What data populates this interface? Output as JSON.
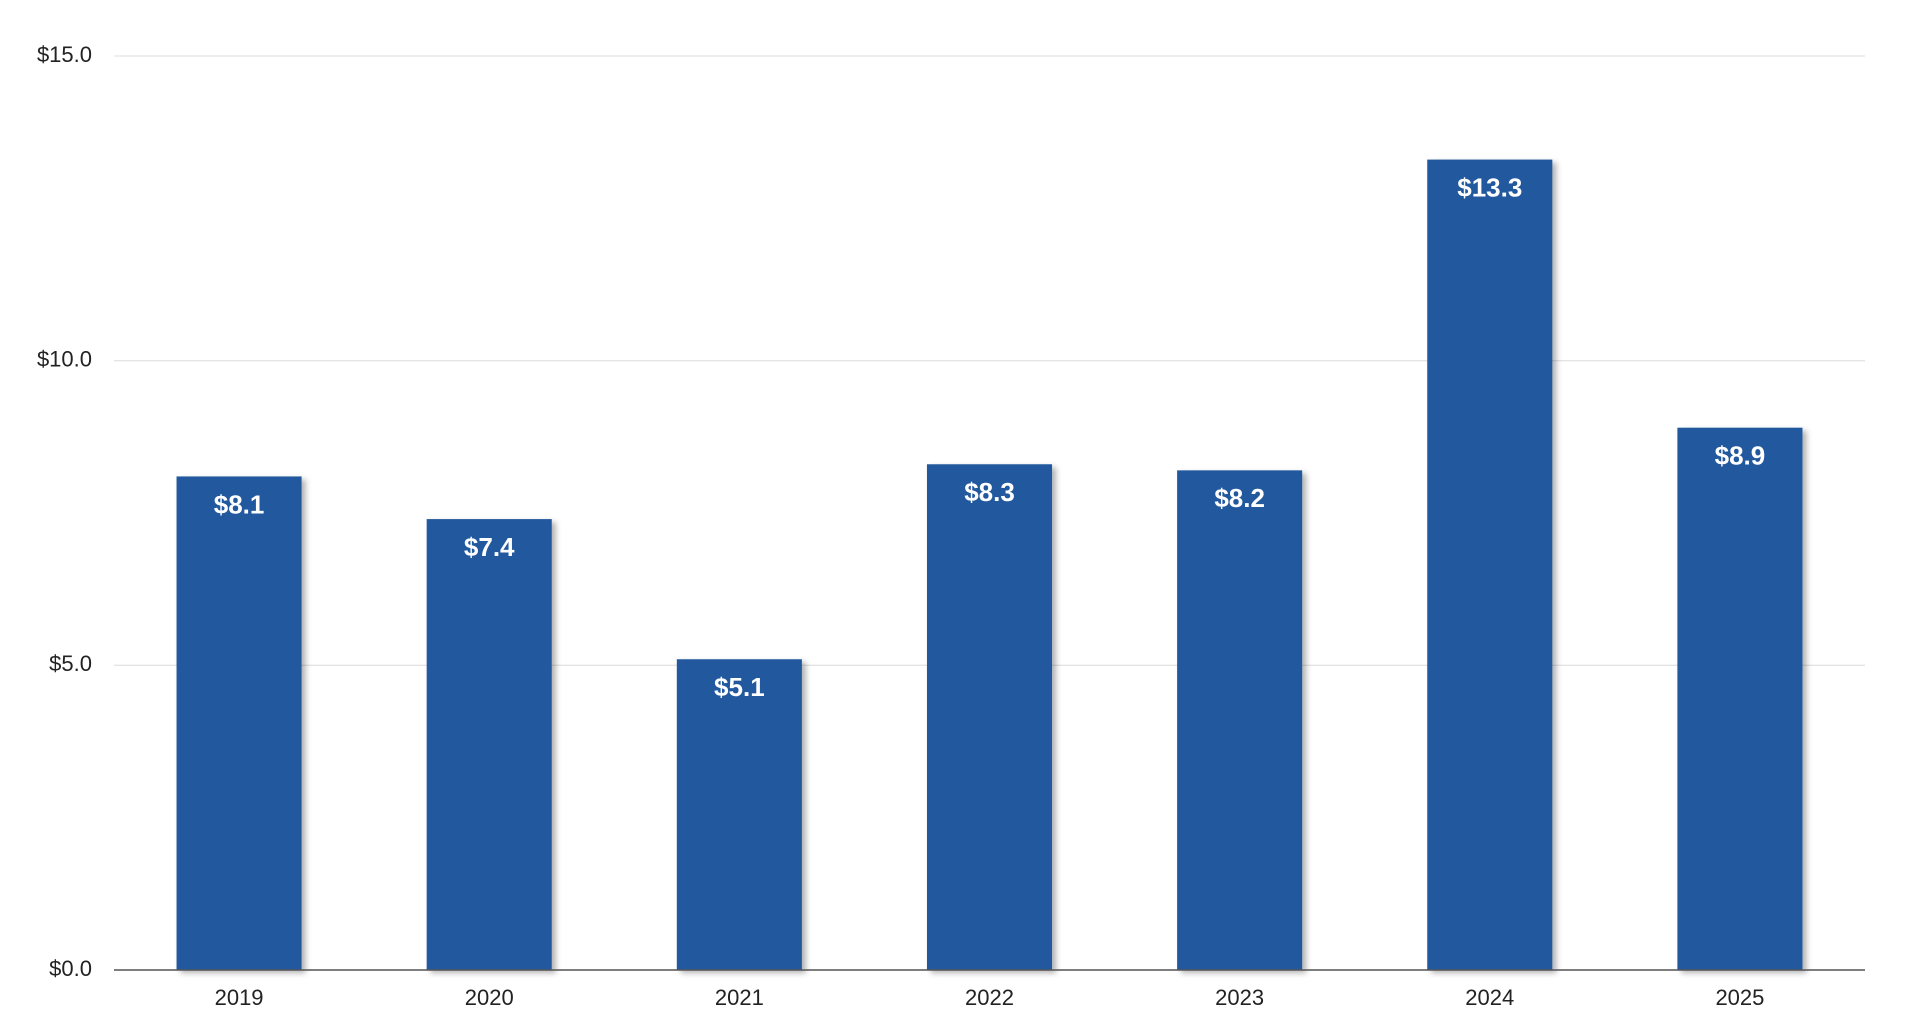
{
  "chart_data": {
    "type": "bar",
    "categories": [
      "2019",
      "2020",
      "2021",
      "2022",
      "2023",
      "2024",
      "2025"
    ],
    "values": [
      8.1,
      7.4,
      5.1,
      8.3,
      8.2,
      13.3,
      8.9
    ],
    "value_labels": [
      "$8.1",
      "$7.4",
      "$5.1",
      "$8.3",
      "$8.2",
      "$13.3",
      "$8.9"
    ],
    "color": "#21599e",
    "ylim": [
      0,
      15
    ],
    "yticks": [
      {
        "value": 0,
        "label": "$0.0"
      },
      {
        "value": 5,
        "label": "$5.0"
      },
      {
        "value": 10,
        "label": "$10.0"
      },
      {
        "value": 15,
        "label": "$15.0"
      }
    ],
    "grid": true
  }
}
